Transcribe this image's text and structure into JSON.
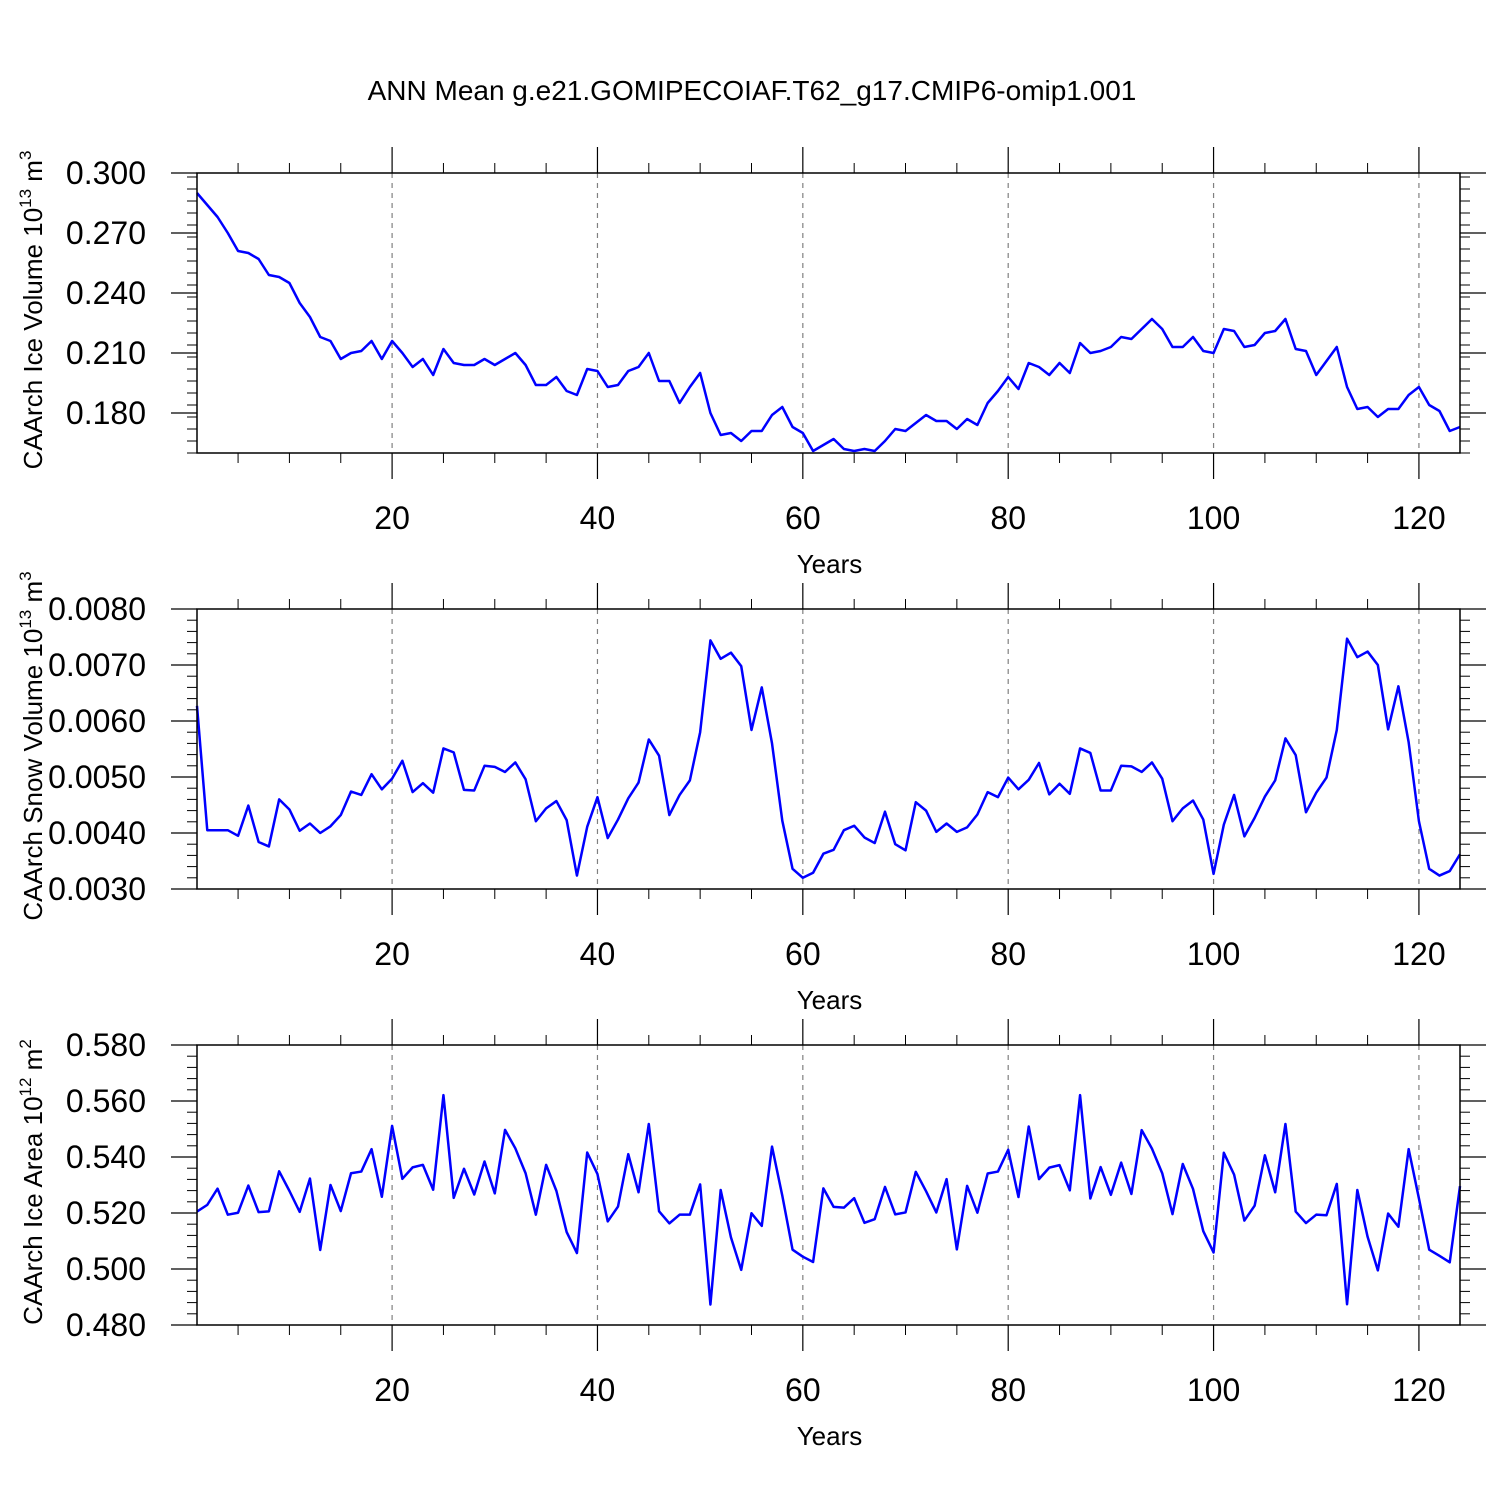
{
  "title": "ANN Mean g.e21.GOMIPECOIAF.T62_g17.CMIP6-omip1.001",
  "colors": {
    "line": "#0000ff",
    "grid": "#808080",
    "frame": "#000000"
  },
  "chart_data": [
    {
      "type": "line",
      "ylabel": "CAArch Ice Volume 10",
      "ylabel_exp": "13",
      "ylabel_unit": " m",
      "ylabel_unit_exp": "3",
      "xlabel": "Years",
      "xlim": [
        1,
        124
      ],
      "ylim": [
        0.16,
        0.3
      ],
      "xticks": [
        20,
        40,
        60,
        80,
        100,
        120
      ],
      "xtick_labels": [
        "20",
        "40",
        "60",
        "80",
        "100",
        "120"
      ],
      "yticks": [
        0.18,
        0.21,
        0.24,
        0.27,
        0.3
      ],
      "ytick_labels": [
        "0.180",
        "0.210",
        "0.240",
        "0.270",
        "0.300"
      ],
      "y_minor_step": 0.006,
      "grid": "vertical dashed at major x ticks",
      "series": [
        {
          "x_start": 1,
          "values": [
            0.29,
            0.284,
            0.278,
            0.27,
            0.261,
            0.26,
            0.257,
            0.249,
            0.248,
            0.245,
            0.235,
            0.228,
            0.218,
            0.216,
            0.207,
            0.21,
            0.211,
            0.216,
            0.207,
            0.216,
            0.21,
            0.203,
            0.207,
            0.199,
            0.212,
            0.205,
            0.204,
            0.204,
            0.207,
            0.204,
            0.207,
            0.21,
            0.204,
            0.194,
            0.194,
            0.198,
            0.191,
            0.189,
            0.202,
            0.201,
            0.193,
            0.194,
            0.201,
            0.203,
            0.21,
            0.196,
            0.196,
            0.185,
            0.193,
            0.2,
            0.18,
            0.169,
            0.17,
            0.166,
            0.171,
            0.171,
            0.179,
            0.183,
            0.173,
            0.17,
            0.161,
            0.164,
            0.167,
            0.162,
            0.161,
            0.162,
            0.161,
            0.166,
            0.172,
            0.171,
            0.175,
            0.179,
            0.176,
            0.176,
            0.172,
            0.177,
            0.174,
            0.185,
            0.191,
            0.198,
            0.192,
            0.205,
            0.203,
            0.199,
            0.205,
            0.2,
            0.215,
            0.21,
            0.211,
            0.213,
            0.218,
            0.217,
            0.222,
            0.227,
            0.222,
            0.213,
            0.213,
            0.218,
            0.211,
            0.21,
            0.222,
            0.221,
            0.213,
            0.214,
            0.22,
            0.221,
            0.227,
            0.212,
            0.211,
            0.199,
            0.206,
            0.213,
            0.193,
            0.182,
            0.183,
            0.178,
            0.182,
            0.182,
            0.189,
            0.193,
            0.184,
            0.181,
            0.171,
            0.173
          ]
        }
      ]
    },
    {
      "type": "line",
      "ylabel": "CAArch Snow Volume 10",
      "ylabel_exp": "13",
      "ylabel_unit": " m",
      "ylabel_unit_exp": "3",
      "xlabel": "Years",
      "xlim": [
        1,
        124
      ],
      "ylim": [
        0.003,
        0.008
      ],
      "xticks": [
        20,
        40,
        60,
        80,
        100,
        120
      ],
      "xtick_labels": [
        "20",
        "40",
        "60",
        "80",
        "100",
        "120"
      ],
      "yticks": [
        0.003,
        0.004,
        0.005,
        0.006,
        0.007,
        0.008
      ],
      "ytick_labels": [
        "0.0030",
        "0.0040",
        "0.0050",
        "0.0060",
        "0.0070",
        "0.0080"
      ],
      "y_minor_step": 0.0002,
      "grid": "vertical dashed at major x ticks",
      "series": [
        {
          "x_start": 1,
          "values": [
            0.00627,
            0.00405,
            0.00405,
            0.00405,
            0.00395,
            0.00449,
            0.00384,
            0.00376,
            0.0046,
            0.00442,
            0.00404,
            0.00417,
            0.004,
            0.00412,
            0.00432,
            0.00474,
            0.00468,
            0.00505,
            0.00478,
            0.00497,
            0.00529,
            0.00473,
            0.00489,
            0.00472,
            0.00551,
            0.00544,
            0.00477,
            0.00476,
            0.0052,
            0.00518,
            0.00509,
            0.00526,
            0.00496,
            0.00421,
            0.00444,
            0.00457,
            0.00423,
            0.00324,
            0.00411,
            0.00464,
            0.00391,
            0.00424,
            0.00462,
            0.0049,
            0.00567,
            0.00538,
            0.00432,
            0.00468,
            0.00494,
            0.0058,
            0.00744,
            0.00711,
            0.00722,
            0.00698,
            0.00584,
            0.0066,
            0.0056,
            0.00422,
            0.00336,
            0.0032,
            0.00329,
            0.00363,
            0.0037,
            0.00405,
            0.00413,
            0.00392,
            0.00382,
            0.00438,
            0.0038,
            0.00369,
            0.00455,
            0.0044,
            0.00402,
            0.00417,
            0.00402,
            0.0041,
            0.00433,
            0.00473,
            0.00464,
            0.00499,
            0.00478,
            0.00495,
            0.00525,
            0.00469,
            0.00488,
            0.0047,
            0.00551,
            0.00543,
            0.00476,
            0.00476,
            0.0052,
            0.00519,
            0.00509,
            0.00526,
            0.00497,
            0.00421,
            0.00444,
            0.00458,
            0.00424,
            0.00327,
            0.00415,
            0.00468,
            0.00394,
            0.00427,
            0.00465,
            0.00494,
            0.00569,
            0.00539,
            0.00437,
            0.00472,
            0.00499,
            0.00584,
            0.00747,
            0.00714,
            0.00724,
            0.007,
            0.00585,
            0.00662,
            0.00562,
            0.00421,
            0.00336,
            0.00324,
            0.00332,
            0.00362
          ]
        }
      ]
    },
    {
      "type": "line",
      "ylabel": "CAArch Ice Area 10",
      "ylabel_exp": "12",
      "ylabel_unit": " m",
      "ylabel_unit_exp": "2",
      "xlabel": "Years",
      "xlim": [
        1,
        124
      ],
      "ylim": [
        0.48,
        0.58
      ],
      "xticks": [
        20,
        40,
        60,
        80,
        100,
        120
      ],
      "xtick_labels": [
        "20",
        "40",
        "60",
        "80",
        "100",
        "120"
      ],
      "yticks": [
        0.48,
        0.5,
        0.52,
        0.54,
        0.56,
        0.58
      ],
      "ytick_labels": [
        "0.480",
        "0.500",
        "0.520",
        "0.540",
        "0.560",
        "0.580"
      ],
      "y_minor_step": 0.004,
      "grid": "vertical dashed at major x ticks",
      "series": [
        {
          "x_start": 1,
          "values": [
            0.5205,
            0.5229,
            0.5287,
            0.5194,
            0.5201,
            0.5298,
            0.5203,
            0.5206,
            0.5349,
            0.5279,
            0.5204,
            0.5323,
            0.5068,
            0.53,
            0.5207,
            0.5342,
            0.5348,
            0.5428,
            0.5258,
            0.5511,
            0.5322,
            0.5363,
            0.5372,
            0.5283,
            0.5621,
            0.5254,
            0.5358,
            0.5266,
            0.5384,
            0.527,
            0.5497,
            0.5431,
            0.5342,
            0.5194,
            0.5372,
            0.5279,
            0.5132,
            0.5057,
            0.5416,
            0.5339,
            0.517,
            0.5223,
            0.541,
            0.5274,
            0.5518,
            0.5206,
            0.5163,
            0.5194,
            0.5194,
            0.5302,
            0.4873,
            0.5282,
            0.5113,
            0.4997,
            0.5199,
            0.5154,
            0.5437,
            0.5262,
            0.5069,
            0.5044,
            0.5025,
            0.5288,
            0.5222,
            0.5219,
            0.5253,
            0.5165,
            0.5178,
            0.5293,
            0.5195,
            0.5202,
            0.5347,
            0.5278,
            0.5202,
            0.5321,
            0.507,
            0.5297,
            0.5201,
            0.5341,
            0.5348,
            0.5426,
            0.5257,
            0.5509,
            0.5321,
            0.5362,
            0.5371,
            0.5281,
            0.5621,
            0.5252,
            0.5364,
            0.5265,
            0.538,
            0.5268,
            0.5496,
            0.543,
            0.5342,
            0.5196,
            0.5375,
            0.5286,
            0.5135,
            0.5059,
            0.5415,
            0.5337,
            0.5173,
            0.5226,
            0.5406,
            0.5274,
            0.5518,
            0.5205,
            0.5164,
            0.5194,
            0.5192,
            0.5304,
            0.4874,
            0.5282,
            0.5115,
            0.4995,
            0.5198,
            0.5151,
            0.5428,
            0.5252,
            0.5069,
            0.5047,
            0.5024,
            0.5296
          ]
        }
      ]
    }
  ]
}
